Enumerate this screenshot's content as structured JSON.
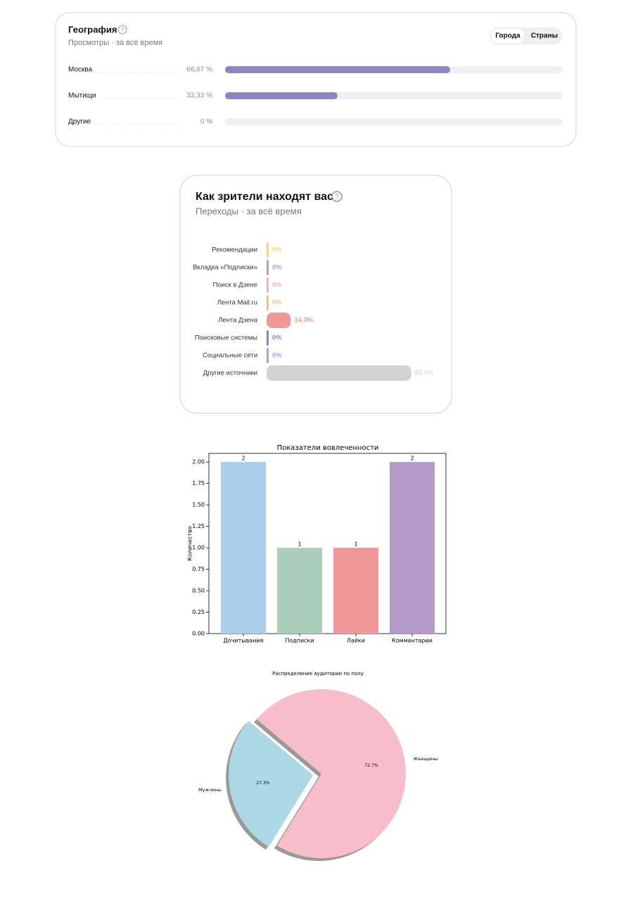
{
  "chart_data": [
    {
      "type": "hbar-card",
      "title": "География",
      "subtitle": "Просмотры · за всё время",
      "tabs": [
        "Города",
        "Страны"
      ],
      "active_tab": 0,
      "categories": [
        "Москва",
        "Мытищи",
        "Другие"
      ],
      "values": [
        66.67,
        33.33,
        0
      ],
      "value_labels": [
        "66,67 %",
        "33,33 %",
        "0 %"
      ],
      "color": "#8e86c1",
      "track_color": "#efeff4"
    },
    {
      "type": "source-card",
      "title": "Как зрители находят вас",
      "subtitle": "Переходы · за всё время",
      "categories": [
        "Рекомендации",
        "Вкладка «Подписки»",
        "Поиск в Дзене",
        "Лента Mail.ru",
        "Лента Дзена",
        "Поисковые системы",
        "Социальные сети",
        "Другие источники"
      ],
      "values": [
        0,
        0,
        0,
        0,
        14.3,
        0,
        0,
        85.7
      ],
      "value_labels": [
        "0%",
        "0%",
        "0%",
        "0%",
        "14.3%",
        "0%",
        "0%",
        "85.7%"
      ],
      "colors": [
        "#f9d56e",
        "#b89bd6",
        "#f4b4c6",
        "#f3c18f",
        "#f09a97",
        "#8a86c6",
        "#b89bd6",
        "#d3d3d3"
      ]
    },
    {
      "type": "bar",
      "title": "Показатели вовлеченности",
      "ylabel": "Количество",
      "categories": [
        "Дочитывания",
        "Подписки",
        "Лайки",
        "Комментарии"
      ],
      "values": [
        2,
        1,
        1,
        2
      ],
      "colors": [
        "#aacdeb",
        "#abcdbb",
        "#f0979a",
        "#b49bc9"
      ],
      "ylim": [
        0,
        2.1
      ],
      "yticks": [
        {
          "value": 0,
          "label": "0.00"
        },
        {
          "value": 0.25,
          "label": "0.25"
        },
        {
          "value": 0.5,
          "label": "0.50"
        },
        {
          "value": 0.75,
          "label": "0.75"
        },
        {
          "value": 1,
          "label": "1.00"
        },
        {
          "value": 1.25,
          "label": "1.25"
        },
        {
          "value": 1.5,
          "label": "1.50"
        },
        {
          "value": 1.75,
          "label": "1.75"
        },
        {
          "value": 2,
          "label": "2.00"
        }
      ]
    },
    {
      "type": "pie",
      "title": "Распределение аудитории по полу",
      "categories": [
        "Мужчины",
        "Женщины"
      ],
      "values": [
        27.3,
        72.7
      ],
      "value_labels": [
        "27.3%",
        "72.7%"
      ],
      "colors": [
        "#add8e6",
        "#f7bdc9"
      ],
      "explode": [
        0.1,
        0
      ],
      "startangle": 140,
      "shadow": true
    }
  ]
}
